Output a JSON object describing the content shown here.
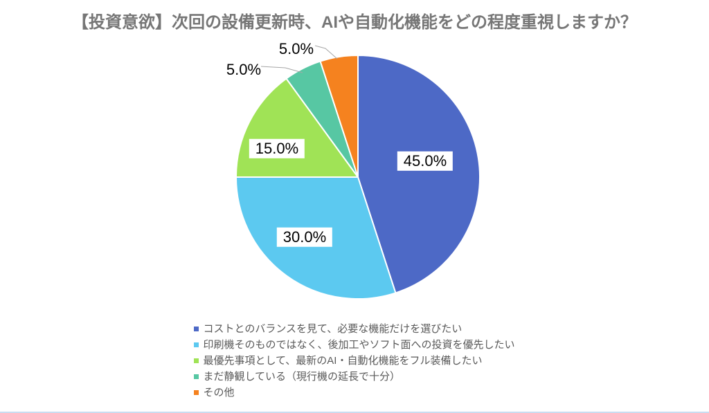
{
  "title": "【投資意欲】次回の設備更新時、AIや自動化機能をどの程度重視しますか？",
  "chart_data": {
    "type": "pie",
    "title": "【投資意欲】次回の設備更新時、AIや自動化機能をどの程度重視しますか？",
    "start_angle_deg": 0,
    "direction": "clockwise",
    "legend_position": "bottom",
    "slices": [
      {
        "label": "コストとのバランスを見て、必要な機能だけを選びたい",
        "value": 45.0,
        "display": "45.0%",
        "color": "#4D69C6"
      },
      {
        "label": "印刷機そのものではなく、後加工やソフト面への投資を優先したい",
        "value": 30.0,
        "display": "30.0%",
        "color": "#5CC9F0"
      },
      {
        "label": "最優先事項として、最新のAI・自動化機能をフル装備したい",
        "value": 15.0,
        "display": "15.0%",
        "color": "#A0E356"
      },
      {
        "label": "まだ静観している（現行機の延長で十分）",
        "value": 5.0,
        "display": "5.0%",
        "color": "#57C7A3"
      },
      {
        "label": "その他",
        "value": 5.0,
        "display": "5.0%",
        "color": "#F5821F"
      }
    ]
  },
  "colors": {
    "title_text": "#767676",
    "legend_text": "#595959",
    "label_text": "#000000",
    "label_box_bg": "#FFFFFF",
    "leader_line": "#A6A6A6",
    "bottom_border": "#C9DCF0",
    "background": "#FFFFFF"
  }
}
